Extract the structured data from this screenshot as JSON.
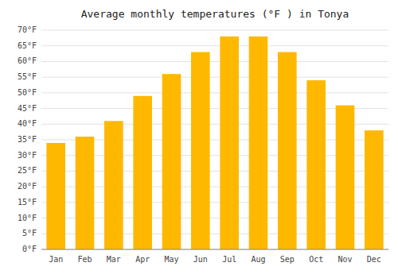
{
  "chart_data": {
    "type": "bar",
    "title": "Average monthly temperatures (°F ) in Tonya",
    "categories": [
      "Jan",
      "Feb",
      "Mar",
      "Apr",
      "May",
      "Jun",
      "Jul",
      "Aug",
      "Sep",
      "Oct",
      "Nov",
      "Dec"
    ],
    "values": [
      34,
      36,
      41,
      49,
      56,
      63,
      68,
      68,
      63,
      54,
      46,
      38
    ],
    "color": "#FFB800",
    "ylim": [
      0,
      70
    ],
    "yticks": [
      {
        "value": 0,
        "label": "0°F"
      },
      {
        "value": 5,
        "label": "5°F"
      },
      {
        "value": 10,
        "label": "10°F"
      },
      {
        "value": 15,
        "label": "15°F"
      },
      {
        "value": 20,
        "label": "20°F"
      },
      {
        "value": 25,
        "label": "25°F"
      },
      {
        "value": 30,
        "label": "30°F"
      },
      {
        "value": 35,
        "label": "35°F"
      },
      {
        "value": 40,
        "label": "40°F"
      },
      {
        "value": 45,
        "label": "45°F"
      },
      {
        "value": 50,
        "label": "50°F"
      },
      {
        "value": 55,
        "label": "55°F"
      },
      {
        "value": 60,
        "label": "60°F"
      },
      {
        "value": 65,
        "label": "65°F"
      },
      {
        "value": 70,
        "label": "70°F"
      }
    ],
    "grid": true
  }
}
